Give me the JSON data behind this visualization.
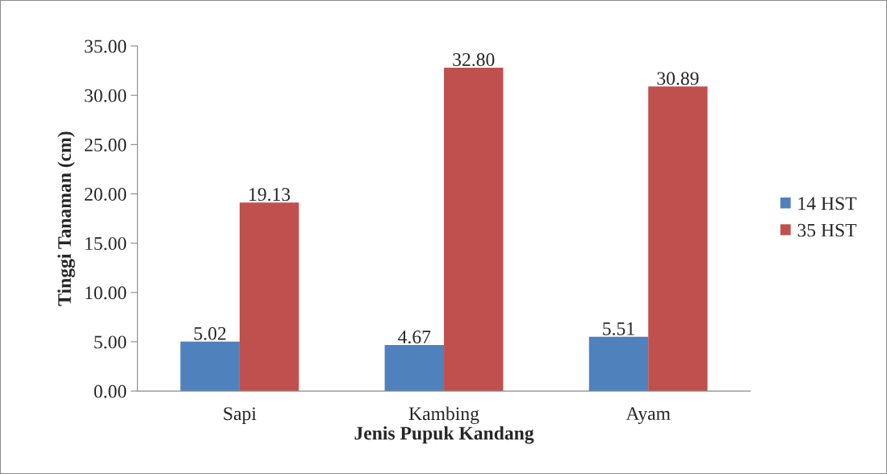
{
  "chart_data": {
    "type": "bar",
    "xlabel": "Jenis Pupuk Kandang",
    "ylabel": "Tinggi Tanaman (cm)",
    "categories": [
      "Sapi",
      "Kambing",
      "Ayam"
    ],
    "series": [
      {
        "name": "14 HST",
        "color": "#4f81bd",
        "values": [
          5.02,
          4.67,
          5.51
        ],
        "value_labels": [
          "5.02",
          "4.67",
          "5.51"
        ]
      },
      {
        "name": "35 HST",
        "color": "#c0504d",
        "values": [
          19.13,
          32.8,
          30.89
        ],
        "value_labels": [
          "19.13",
          "32.80",
          "30.89"
        ]
      }
    ],
    "ylim": [
      0,
      35
    ],
    "yticks": [
      {
        "value": 0,
        "label": "0.00"
      },
      {
        "value": 5,
        "label": "5.00"
      },
      {
        "value": 10,
        "label": "10.00"
      },
      {
        "value": 15,
        "label": "15.00"
      },
      {
        "value": 20,
        "label": "20.00"
      },
      {
        "value": 25,
        "label": "25.00"
      },
      {
        "value": 30,
        "label": "30.00"
      },
      {
        "value": 35,
        "label": "35.00"
      }
    ],
    "grid": false,
    "legend": "right"
  }
}
